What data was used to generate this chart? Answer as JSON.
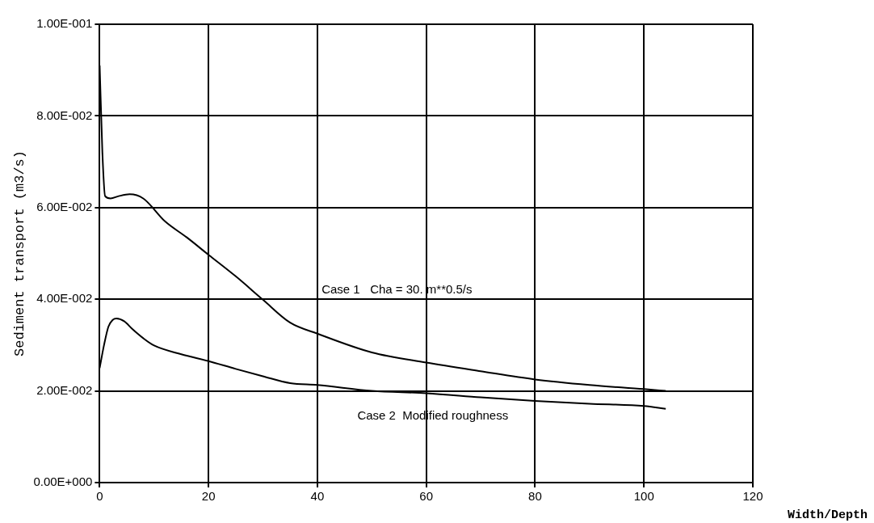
{
  "chart_data": {
    "type": "line",
    "xlabel": "Width/Depth",
    "ylabel": "Sediment transport (m3/s)",
    "xlim": [
      0,
      120
    ],
    "xticks": [
      0,
      20,
      40,
      60,
      80,
      100,
      120
    ],
    "ylim": [
      0,
      0.1
    ],
    "yticks": [
      {
        "value": 0,
        "label": "0.00E+000"
      },
      {
        "value": 0.02,
        "label": "2.00E-002"
      },
      {
        "value": 0.04,
        "label": "4.00E-002"
      },
      {
        "value": 0.06,
        "label": "6.00E-002"
      },
      {
        "value": 0.08,
        "label": "8.00E-002"
      },
      {
        "value": 0.1,
        "label": "1.00E-001"
      }
    ],
    "grid": true,
    "marker": "none",
    "line_style": "solid",
    "series": [
      {
        "color": "#000000",
        "x": [
          0,
          0.5,
          1,
          2,
          3.5,
          5.5,
          8,
          12,
          16,
          20,
          25,
          30,
          35,
          40,
          50,
          60,
          70,
          80,
          90,
          100,
          104
        ],
        "values": [
          0.091,
          0.072,
          0.0625,
          0.062,
          0.0625,
          0.0629,
          0.062,
          0.057,
          0.0535,
          0.0497,
          0.045,
          0.0399,
          0.0349,
          0.0325,
          0.0284,
          0.0262,
          0.0243,
          0.0225,
          0.0213,
          0.0204,
          0.02
        ]
      },
      {
        "color": "#000000",
        "x": [
          0,
          0.8,
          1.6,
          2.4,
          3.1,
          4.5,
          6,
          8,
          10,
          15,
          20,
          25,
          30,
          35,
          40,
          50,
          60,
          70,
          80,
          90,
          100,
          104
        ],
        "values": [
          0.025,
          0.03,
          0.034,
          0.0355,
          0.0358,
          0.0352,
          0.0335,
          0.0315,
          0.0299,
          0.028,
          0.0265,
          0.0248,
          0.0232,
          0.0217,
          0.0213,
          0.02,
          0.0195,
          0.0186,
          0.0178,
          0.0172,
          0.0167,
          0.0161
        ]
      }
    ],
    "annotations": [
      "Case 1   Cha = 30. m**0.5/s",
      "Case 2  Modified roughness"
    ]
  }
}
